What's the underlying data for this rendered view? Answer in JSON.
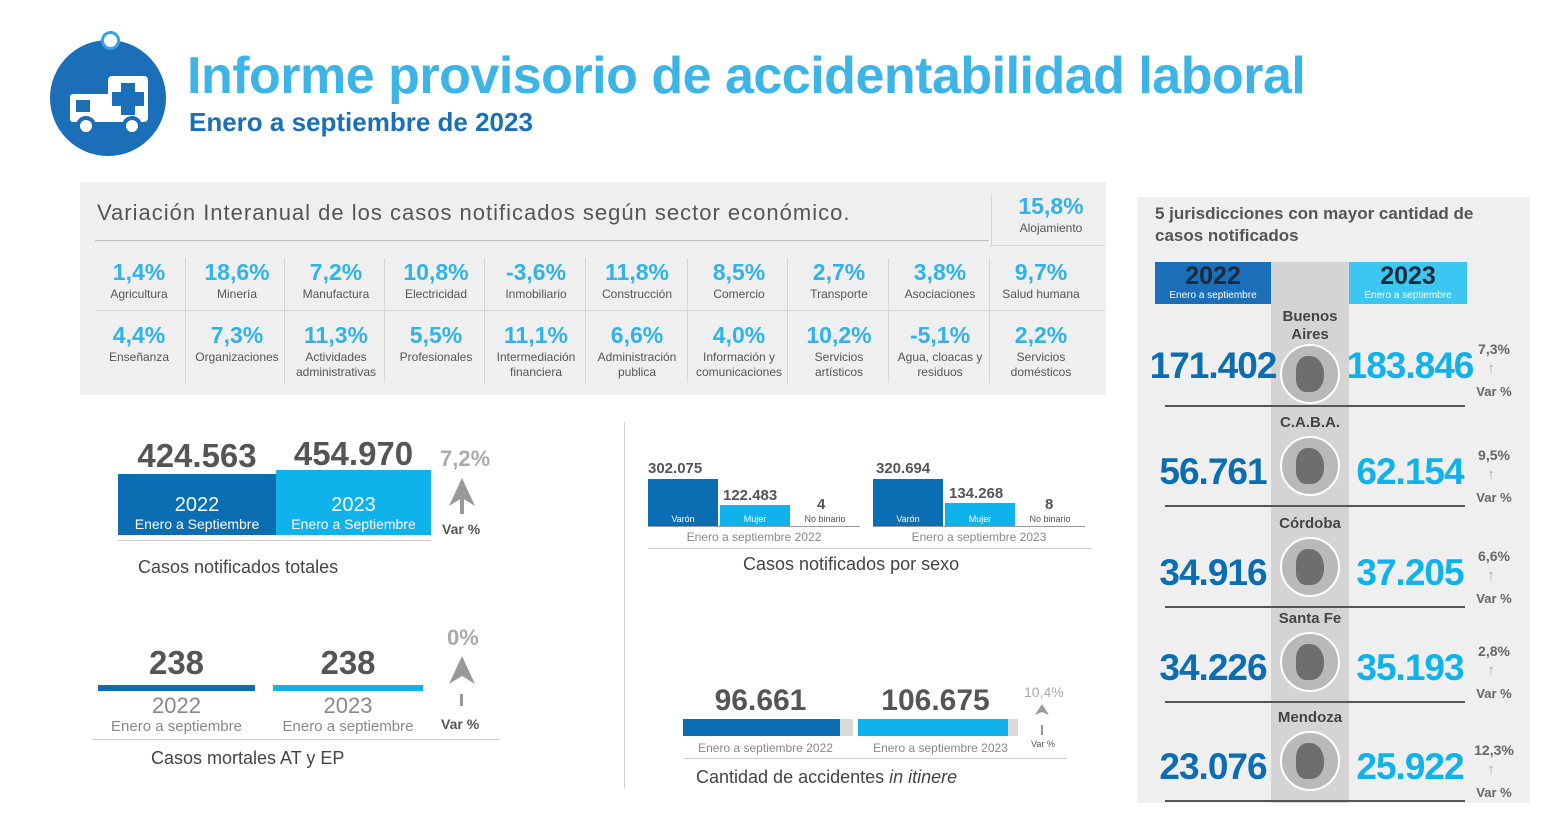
{
  "header": {
    "title": "Informe provisorio de accidentabilidad laboral",
    "subtitle": "Enero a septiembre de 2023",
    "icon": "ambulance-icon"
  },
  "colors": {
    "dark_blue": "#0b6db2",
    "light_blue": "#10b2ec",
    "title_blue": "#3cb4e6"
  },
  "sectors": {
    "heading": "Variación Interanual de los casos notificados según sector económico.",
    "top_item": {
      "value": "15,8%",
      "label": "Alojamiento"
    },
    "row1": [
      {
        "value": "1,4%",
        "label": "Agricultura"
      },
      {
        "value": "18,6%",
        "label": "Minería"
      },
      {
        "value": "7,2%",
        "label": "Manufactura"
      },
      {
        "value": "10,8%",
        "label": "Electricidad"
      },
      {
        "value": "-3,6%",
        "label": "Inmobiliario"
      },
      {
        "value": "11,8%",
        "label": "Construcción"
      },
      {
        "value": "8,5%",
        "label": "Comercio"
      },
      {
        "value": "2,7%",
        "label": "Transporte"
      },
      {
        "value": "3,8%",
        "label": "Asociaciones"
      },
      {
        "value": "9,7%",
        "label": "Salud humana"
      }
    ],
    "row2": [
      {
        "value": "4,4%",
        "label": "Enseñanza"
      },
      {
        "value": "7,3%",
        "label": "Organizaciones"
      },
      {
        "value": "11,3%",
        "label": "Actividades administrativas"
      },
      {
        "value": "5,5%",
        "label": "Profesionales"
      },
      {
        "value": "11,1%",
        "label": "Intermediación financiera"
      },
      {
        "value": "6,6%",
        "label": "Administración publica"
      },
      {
        "value": "4,0%",
        "label": "Información y comunicaciones"
      },
      {
        "value": "10,2%",
        "label": "Servicios artísticos"
      },
      {
        "value": "-5,1%",
        "label": "Agua, cloacas y residuos"
      },
      {
        "value": "2,2%",
        "label": "Servicios domésticos"
      }
    ]
  },
  "totales": {
    "v2022": "424.563",
    "v2023": "454.970",
    "y2022": "2022",
    "y2023": "2023",
    "period": "Enero a Septiembre",
    "var": "7,2%",
    "var_label": "Var %",
    "caption": "Casos notificados totales"
  },
  "mortales": {
    "v2022": "238",
    "v2023": "238",
    "y2022": "2022",
    "y2023": "2023",
    "period": "Enero a septiembre",
    "var": "0%",
    "var_label": "Var %",
    "caption": "Casos mortales AT y EP"
  },
  "sexo": {
    "caption": "Casos notificados por sexo",
    "g2022": {
      "varon": "302.075",
      "mujer": "122.483",
      "nb": "4",
      "period": "Enero a septiembre 2022",
      "varon_share": 0.711,
      "mujer_share": 0.289
    },
    "g2023": {
      "varon": "320.694",
      "mujer": "134.268",
      "nb": "8",
      "period": "Enero a septiembre 2023",
      "varon_share": 0.705,
      "mujer_share": 0.295
    },
    "lbl_varon": "Varón",
    "lbl_mujer": "Mujer",
    "lbl_nb": "No binario"
  },
  "itinere": {
    "v2022": "96.661",
    "v2023": "106.675",
    "p2022": "Enero a septiembre 2022",
    "p2023": "Enero a septiembre 2023",
    "var": "10,4%",
    "var_label": "Var %",
    "caption_main": "Cantidad de accidentes ",
    "caption_italic": "in itinere"
  },
  "jurisdicciones": {
    "title": "5 jurisdicciones con mayor cantidad de casos notificados",
    "y2022": "2022",
    "y2023": "2023",
    "period": "Enero a septiembre",
    "var_label": "Var %",
    "rows": [
      {
        "name": "Buenos Aires",
        "v2022": "171.402",
        "v2023": "183.846",
        "var": "7,3%"
      },
      {
        "name": "C.A.B.A.",
        "v2022": "56.761",
        "v2023": "62.154",
        "var": "9,5%"
      },
      {
        "name": "Córdoba",
        "v2022": "34.916",
        "v2023": "37.205",
        "var": "6,6%"
      },
      {
        "name": "Santa Fe",
        "v2022": "34.226",
        "v2023": "35.193",
        "var": "2,8%"
      },
      {
        "name": "Mendoza",
        "v2022": "23.076",
        "v2023": "25.922",
        "var": "12,3%"
      }
    ]
  }
}
